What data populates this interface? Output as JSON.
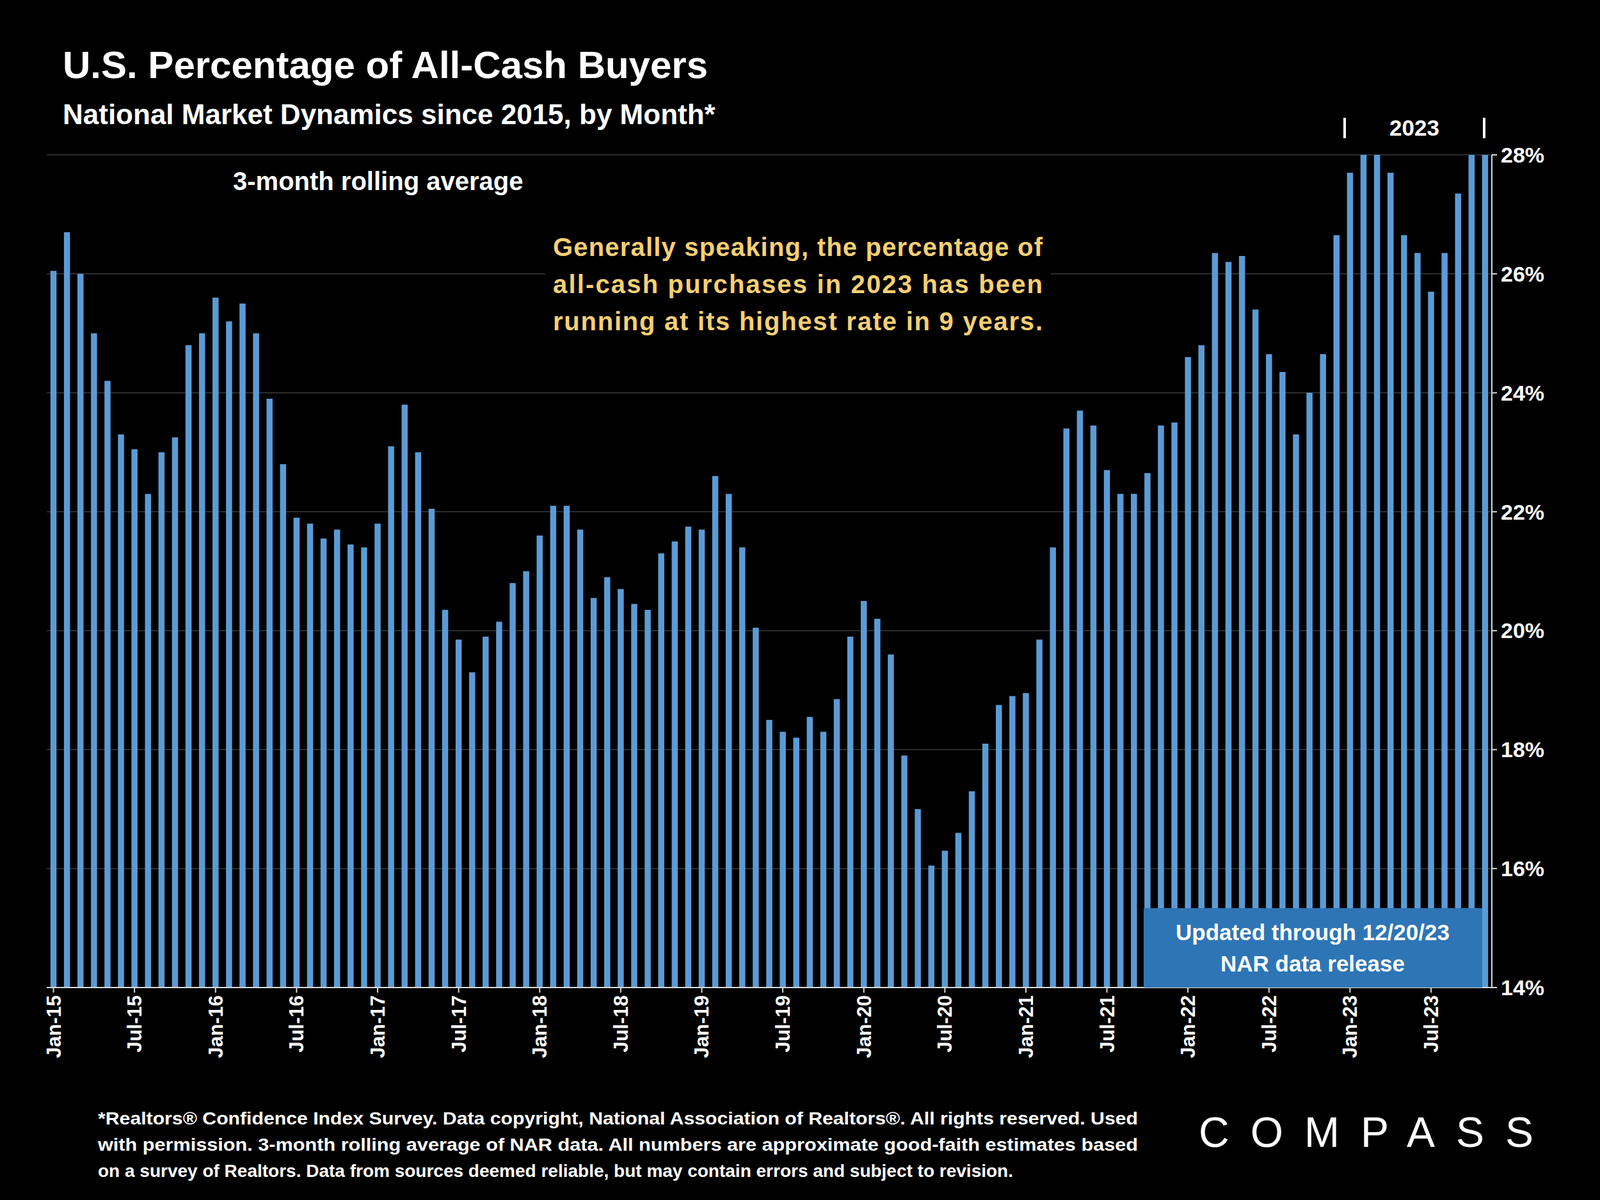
{
  "chart_data": {
    "type": "bar",
    "title": "U.S. Percentage of All-Cash Buyers",
    "subtitle": "National Market Dynamics since 2015, by Month*",
    "annotations": {
      "rolling": "3-month rolling average",
      "highlight": [
        "Generally speaking, the percentage of",
        "all-cash purchases in 2023 has been",
        "running at its highest rate in 9 years."
      ],
      "period": "2023",
      "update": [
        "Updated through 12/20/23",
        "NAR data release"
      ]
    },
    "footnote": [
      "*Realtors® Confidence Index Survey. Data copyright, National Association of Realtors®. All rights reserved. Used",
      "with permission. 3-month rolling average of NAR data. All numbers are approximate good-faith estimates based",
      "on a survey of Realtors. Data from sources deemed reliable, but may contain errors and subject to revision."
    ],
    "logo": "COMPASS",
    "categories": [
      "Jan-15",
      null,
      null,
      null,
      null,
      null,
      "Jul-15",
      null,
      null,
      null,
      null,
      null,
      "Jan-16",
      null,
      null,
      null,
      null,
      null,
      "Jul-16",
      null,
      null,
      null,
      null,
      null,
      "Jan-17",
      null,
      null,
      null,
      null,
      null,
      "Jul-17",
      null,
      null,
      null,
      null,
      null,
      "Jan-18",
      null,
      null,
      null,
      null,
      null,
      "Jul-18",
      null,
      null,
      null,
      null,
      null,
      "Jan-19",
      null,
      null,
      null,
      null,
      null,
      "Jul-19",
      null,
      null,
      null,
      null,
      null,
      "Jan-20",
      null,
      null,
      null,
      null,
      null,
      "Jul-20",
      null,
      null,
      null,
      null,
      null,
      "Jan-21",
      null,
      null,
      null,
      null,
      null,
      "Jul-21",
      null,
      null,
      null,
      null,
      null,
      "Jan-22",
      null,
      null,
      null,
      null,
      null,
      "Jul-22",
      null,
      null,
      null,
      null,
      null,
      "Jan-23",
      null,
      null,
      null,
      null,
      null,
      "Jul-23",
      null,
      null,
      null,
      null
    ],
    "values": [
      26.05,
      26.7,
      26.0,
      25.0,
      24.2,
      23.3,
      23.05,
      22.3,
      23.0,
      23.25,
      24.8,
      25.0,
      25.6,
      25.2,
      25.5,
      25.0,
      23.9,
      22.8,
      21.9,
      21.8,
      21.55,
      21.7,
      21.45,
      21.4,
      21.8,
      23.1,
      23.8,
      23.0,
      22.05,
      20.35,
      19.85,
      19.3,
      19.9,
      20.15,
      20.8,
      21.0,
      21.6,
      22.1,
      22.1,
      21.7,
      20.55,
      20.9,
      20.7,
      20.45,
      20.35,
      21.3,
      21.5,
      21.75,
      21.7,
      22.6,
      22.3,
      21.4,
      20.05,
      18.5,
      18.3,
      18.2,
      18.55,
      18.3,
      18.85,
      19.9,
      20.5,
      20.2,
      19.6,
      17.9,
      17.0,
      16.05,
      16.3,
      16.6,
      17.3,
      18.1,
      18.75,
      18.9,
      18.95,
      19.85,
      21.4,
      23.4,
      23.7,
      23.45,
      22.7,
      22.3,
      22.3,
      22.65,
      23.45,
      23.5,
      24.6,
      24.8,
      26.35,
      26.2,
      26.3,
      25.4,
      24.65,
      24.35,
      23.3,
      24.0,
      24.65,
      26.65,
      27.7,
      28.0,
      28.0,
      27.7,
      26.65,
      26.35,
      25.7,
      26.35,
      27.35,
      28.0,
      28.0
    ],
    "color": "#5b9bd5",
    "ylim": [
      14,
      28
    ],
    "yticks": [
      {
        "value": 14,
        "label": "14%"
      },
      {
        "value": 16,
        "label": "16%"
      },
      {
        "value": 18,
        "label": "18%"
      },
      {
        "value": 20,
        "label": "20%"
      },
      {
        "value": 22,
        "label": "22%"
      },
      {
        "value": 24,
        "label": "24%"
      },
      {
        "value": 26,
        "label": "26%"
      },
      {
        "value": 28,
        "label": "28%"
      }
    ],
    "grid": true
  }
}
